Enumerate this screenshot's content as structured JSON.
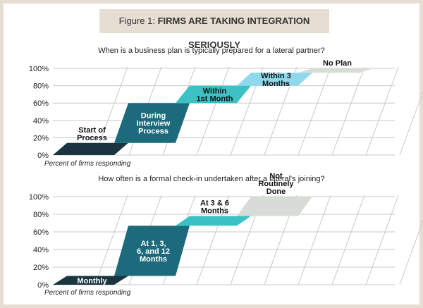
{
  "figure": {
    "number_label": "Figure 1:",
    "title": "FIRMS ARE TAKING INTEGRATION SERIOUSLY"
  },
  "colors": {
    "background": "#e6ddd3",
    "dark_navy": "#1b3540",
    "dark_teal": "#1c6b7c",
    "teal": "#3cc2c4",
    "light_blue": "#8fd9ef",
    "light_gray": "#d8dcd6",
    "grid": "#c8c8c8"
  },
  "chart_data": [
    {
      "type": "bar",
      "title": "When is a business plan is typically prepared for a lateral partner?",
      "xlabel": "Percent of firms responding",
      "ylim": [
        0,
        100
      ],
      "yticks": [
        "0%",
        "20%",
        "40%",
        "60%",
        "80%",
        "100%"
      ],
      "segments": [
        {
          "label": "Start of Process",
          "label_lines": [
            "Start of",
            "Process"
          ],
          "start": 0,
          "end": 14,
          "color": "#1b3540",
          "label_color": "#111111",
          "label_position": "above"
        },
        {
          "label": "During Interview Process",
          "label_lines": [
            "During",
            "Interview",
            "Process"
          ],
          "start": 14,
          "end": 60,
          "color": "#1c6b7c",
          "label_color": "#ffffff",
          "label_position": "inside"
        },
        {
          "label": "Within 1st Month",
          "label_lines": [
            "Within",
            "1st Month"
          ],
          "start": 60,
          "end": 80,
          "color": "#3cc2c4",
          "label_color": "#111111",
          "label_position": "inside"
        },
        {
          "label": "Within 3 Months",
          "label_lines": [
            "Within 3",
            "Months"
          ],
          "start": 80,
          "end": 95,
          "color": "#8fd9ef",
          "label_color": "#111111",
          "label_position": "inside"
        },
        {
          "label": "No Plan",
          "label_lines": [
            "No Plan"
          ],
          "start": 95,
          "end": 100,
          "color": "#d8dcd6",
          "label_color": "#111111",
          "label_position": "above"
        }
      ]
    },
    {
      "type": "bar",
      "title": "How often is a formal check-in undertaken after a lateral's joining?",
      "xlabel": "Percent of firms responding",
      "ylim": [
        0,
        100
      ],
      "yticks": [
        "0%",
        "20%",
        "40%",
        "60%",
        "80%",
        "100%"
      ],
      "segments": [
        {
          "label": "Monthly",
          "label_lines": [
            "Monthly"
          ],
          "start": 0,
          "end": 10,
          "color": "#1b3540",
          "label_color": "#ffffff",
          "label_position": "inside"
        },
        {
          "label": "At 1, 3, 6, and 12 Months",
          "label_lines": [
            "At 1, 3,",
            "6, and 12",
            "Months"
          ],
          "start": 10,
          "end": 67,
          "color": "#1c6b7c",
          "label_color": "#ffffff",
          "label_position": "inside"
        },
        {
          "label": "At 3 & 6 Months",
          "label_lines": [
            "At 3 & 6",
            "Months"
          ],
          "start": 67,
          "end": 78,
          "color": "#3cc2c4",
          "label_color": "#111111",
          "label_position": "above"
        },
        {
          "label": "Not Routinely Done",
          "label_lines": [
            "Not",
            "Routinely",
            "Done"
          ],
          "start": 78,
          "end": 100,
          "color": "#d8dcd6",
          "label_color": "#111111",
          "label_position": "above"
        }
      ]
    }
  ]
}
